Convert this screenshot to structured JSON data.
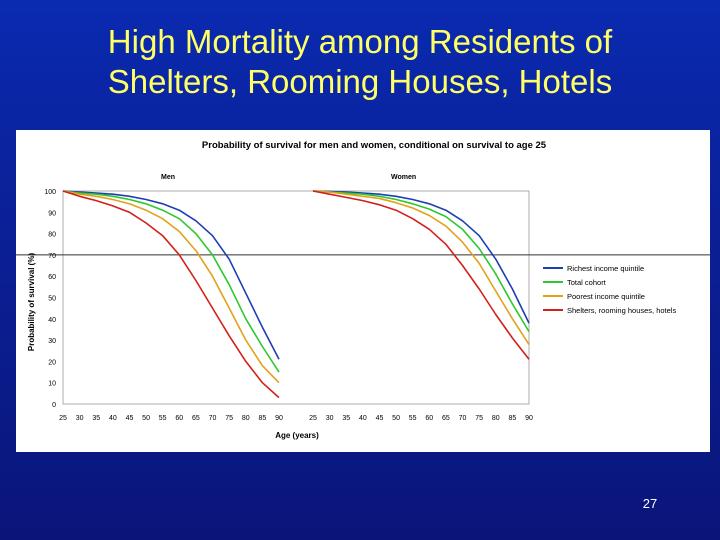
{
  "slide": {
    "title_line1": "High Mortality among Residents of",
    "title_line2": "Shelters, Rooming Houses, Hotels",
    "page_number": "27",
    "title_color": "#ffff66",
    "background_color": "#0b1f95"
  },
  "chart_data": {
    "type": "line",
    "title": "Probability of survival for men and women, conditional on survival to age 25",
    "ylabel": "Probability of survival (%)",
    "xlabel": "Age (years)",
    "ylim": [
      0,
      100
    ],
    "yticks": [
      0,
      10,
      20,
      30,
      40,
      50,
      60,
      70,
      80,
      90,
      100
    ],
    "reference_line_y": 70,
    "x": [
      25,
      30,
      35,
      40,
      45,
      50,
      55,
      60,
      65,
      70,
      75,
      80,
      85,
      90
    ],
    "legend_position": "right",
    "series_styles": [
      {
        "name": "Richest income quintile",
        "color": "#1f3db5"
      },
      {
        "name": "Total cohort",
        "color": "#2ec82e"
      },
      {
        "name": "Poorest income quintile",
        "color": "#e0a21a"
      },
      {
        "name": "Shelters, rooming houses, hotels",
        "color": "#d3201a"
      }
    ],
    "panels": [
      {
        "label": "Men",
        "series": [
          {
            "name": "Richest income quintile",
            "values": [
              100,
              99.5,
              99,
              98.5,
              97.5,
              96,
              94,
              91,
              86,
              79,
              68,
              52,
              36,
              21
            ]
          },
          {
            "name": "Total cohort",
            "values": [
              100,
              99,
              98.5,
              97.5,
              96,
              94,
              91,
              87,
              80,
              70,
              56,
              40,
              27,
              15
            ]
          },
          {
            "name": "Poorest income quintile",
            "values": [
              100,
              98.5,
              97.5,
              96,
              94,
              91,
              87,
              81,
              72,
              60,
              45,
              30,
              18,
              10
            ]
          },
          {
            "name": "Shelters, rooming houses, hotels",
            "values": [
              100,
              97.5,
              95.5,
              93,
              90,
              85,
              79,
              70,
              58,
              45,
              32,
              20,
              10,
              3
            ]
          }
        ]
      },
      {
        "label": "Women",
        "series": [
          {
            "name": "Richest income quintile",
            "values": [
              100,
              99.8,
              99.5,
              99,
              98.5,
              97.5,
              96,
              94,
              91,
              86,
              79,
              68,
              54,
              38
            ]
          },
          {
            "name": "Total cohort",
            "values": [
              100,
              99.5,
              99,
              98.5,
              97.5,
              96,
              94,
              91.5,
              88,
              82,
              73,
              61,
              47,
              34
            ]
          },
          {
            "name": "Poorest income quintile",
            "values": [
              100,
              99.5,
              98.5,
              97.5,
              96.5,
              94.5,
              92,
              88.5,
              83.5,
              76,
              66,
              53,
              40,
              28
            ]
          },
          {
            "name": "Shelters, rooming houses, hotels",
            "values": [
              100,
              98.5,
              97,
              95.5,
              93.5,
              91,
              87,
              82,
              75,
              65,
              54,
              42,
              31,
              21
            ]
          }
        ]
      }
    ]
  }
}
